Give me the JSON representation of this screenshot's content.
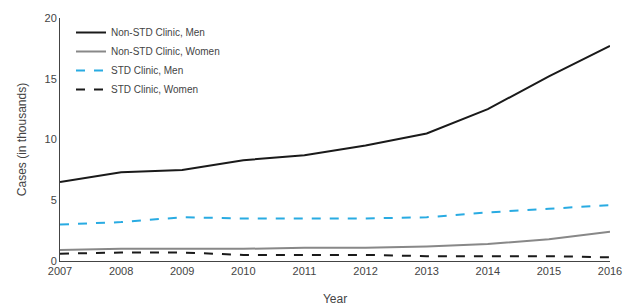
{
  "chart_data": {
    "type": "line",
    "x": [
      2007,
      2008,
      2009,
      2010,
      2011,
      2012,
      2013,
      2014,
      2015,
      2016
    ],
    "series": [
      {
        "name": "Non-STD Clinic, Men",
        "color": "#1a1a1a",
        "line_style": "solid",
        "values": [
          6.5,
          7.3,
          7.5,
          8.3,
          8.7,
          9.5,
          10.5,
          12.5,
          15.2,
          17.7
        ]
      },
      {
        "name": "Non-STD Clinic, Women",
        "color": "#888888",
        "line_style": "solid",
        "values": [
          0.9,
          1.0,
          1.0,
          1.0,
          1.1,
          1.1,
          1.2,
          1.4,
          1.8,
          2.4
        ]
      },
      {
        "name": "STD Clinic, Men",
        "color": "#29abe2",
        "line_style": "dashed",
        "values": [
          3.0,
          3.2,
          3.6,
          3.5,
          3.5,
          3.5,
          3.6,
          4.0,
          4.3,
          4.6
        ]
      },
      {
        "name": "STD Clinic, Women",
        "color": "#1a1a1a",
        "line_style": "dashed",
        "values": [
          0.6,
          0.7,
          0.7,
          0.5,
          0.5,
          0.5,
          0.4,
          0.4,
          0.4,
          0.3
        ]
      }
    ],
    "xlabel": "Year",
    "ylabel": "Cases (in thousands)",
    "xlim": [
      2007,
      2016
    ],
    "xticks": [
      2007,
      2008,
      2009,
      2010,
      2011,
      2012,
      2013,
      2014,
      2015,
      2016
    ],
    "ylim": [
      0,
      20
    ],
    "yticks": [
      0,
      5,
      10,
      15,
      20
    ],
    "grid": false,
    "legend": "upper left"
  }
}
